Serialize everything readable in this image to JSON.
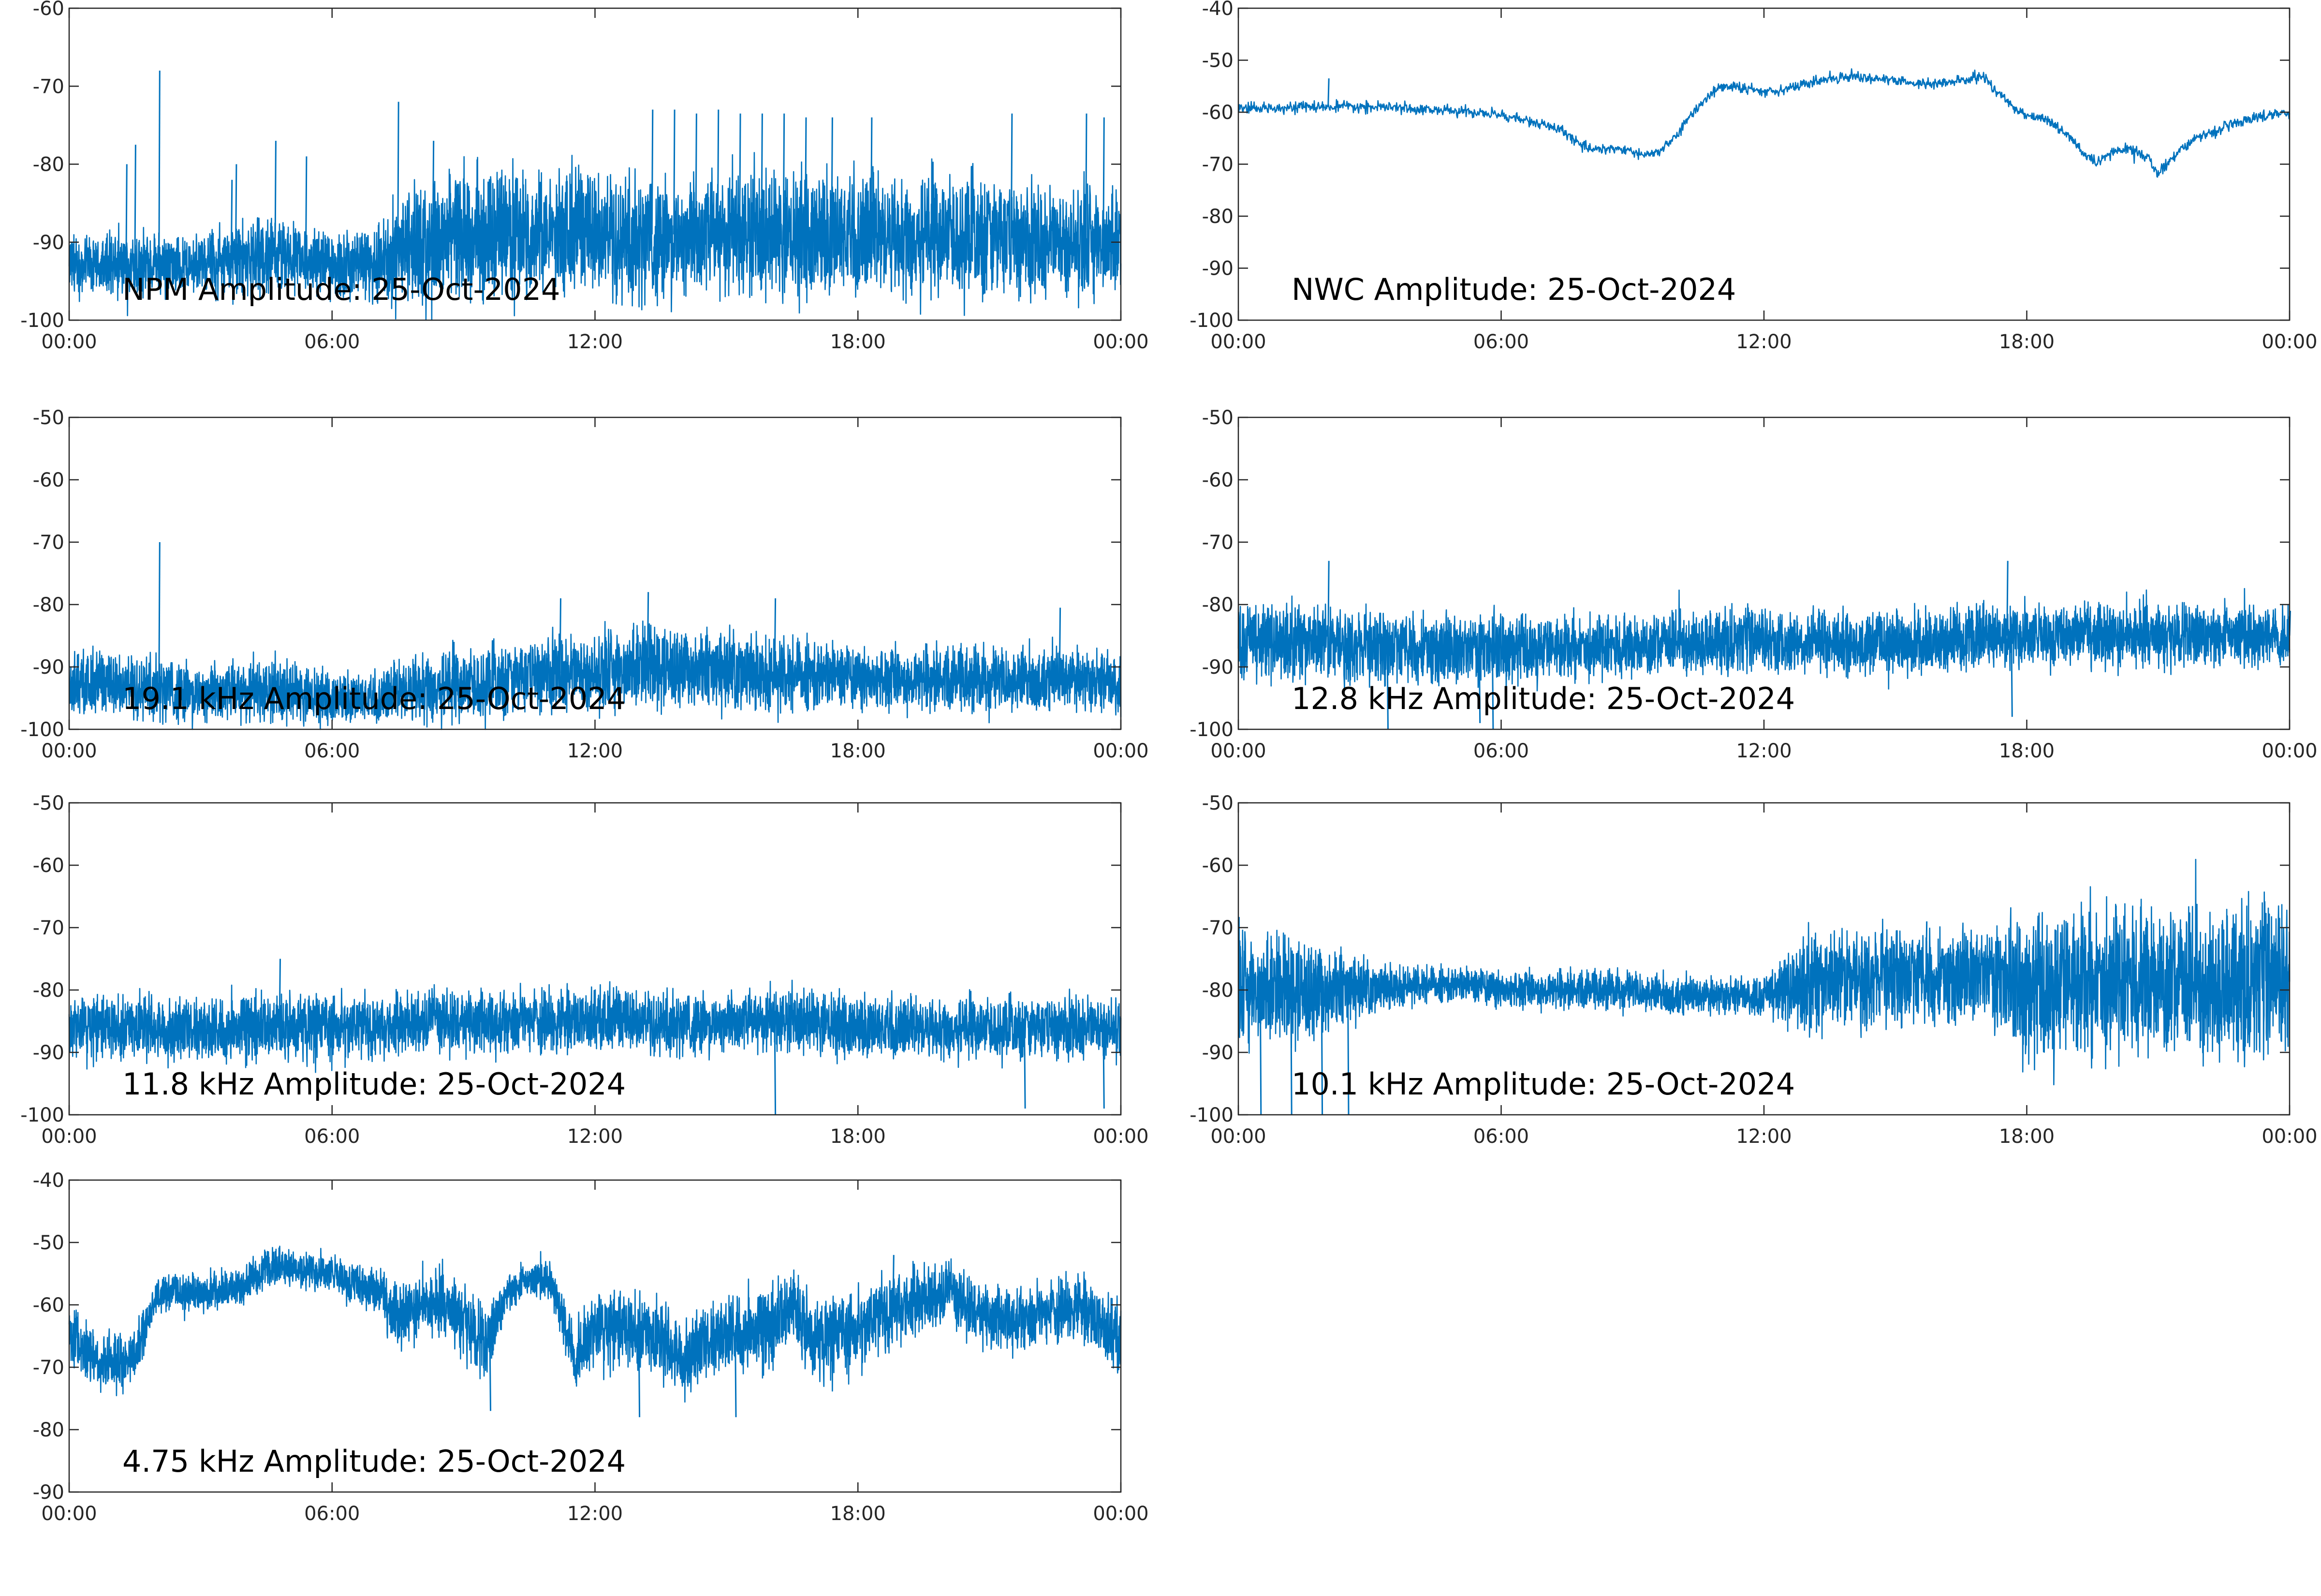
{
  "colors": {
    "series": "#0072BD",
    "axes": "#262626",
    "background": "#ffffff"
  },
  "chart_data": [
    {
      "type": "line",
      "title": "NPM Amplitude: 25-Oct-2024",
      "x_tick_labels": [
        "00:00",
        "06:00",
        "12:00",
        "18:00",
        "00:00"
      ],
      "x_range_hours": [
        0,
        24
      ],
      "ylim": [
        -100,
        -60
      ],
      "y_ticks": [
        -100,
        -90,
        -80,
        -70,
        -60
      ],
      "grid": false,
      "series": [
        {
          "values_description_hours": [
            0,
            1,
            2,
            3,
            4,
            5,
            6,
            7,
            8,
            9,
            10,
            11,
            12,
            13,
            14,
            15,
            16,
            17,
            18,
            19,
            20,
            21,
            22,
            23,
            24
          ],
          "center": [
            -93,
            -93,
            -93,
            -93,
            -92,
            -92,
            -93,
            -93,
            -90,
            -89,
            -89,
            -89,
            -89,
            -89,
            -89,
            -89,
            -89,
            -89,
            -89,
            -89,
            -89,
            -89,
            -90,
            -90,
            -90
          ],
          "spread": [
            4,
            4,
            4,
            4,
            5,
            5,
            4,
            5,
            8,
            8,
            8,
            8,
            8,
            8,
            8,
            8,
            8,
            8,
            8,
            8,
            8,
            8,
            7,
            7,
            7
          ],
          "spikes": [
            [
              1.3,
              -80
            ],
            [
              1.5,
              -77.5
            ],
            [
              2.05,
              -68
            ],
            [
              3.7,
              -82
            ],
            [
              3.8,
              -80
            ],
            [
              4.7,
              -77
            ],
            [
              5.4,
              -79
            ],
            [
              7.5,
              -72
            ],
            [
              8.3,
              -77
            ],
            [
              13.3,
              -73
            ],
            [
              13.8,
              -73
            ],
            [
              14.3,
              -73.5
            ],
            [
              14.8,
              -73
            ],
            [
              15.3,
              -73.5
            ],
            [
              15.8,
              -73.5
            ],
            [
              16.3,
              -73.5
            ],
            [
              16.8,
              -74
            ],
            [
              17.4,
              -74
            ],
            [
              18.3,
              -74
            ],
            [
              21.5,
              -73.5
            ],
            [
              23.2,
              -73.5
            ],
            [
              23.6,
              -74
            ]
          ]
        }
      ]
    },
    {
      "type": "line",
      "title": "NWC Amplitude: 25-Oct-2024",
      "x_tick_labels": [
        "00:00",
        "06:00",
        "12:00",
        "18:00",
        "00:00"
      ],
      "x_range_hours": [
        0,
        24
      ],
      "ylim": [
        -100,
        -40
      ],
      "y_ticks": [
        -100,
        -90,
        -80,
        -70,
        -60,
        -50,
        -40
      ],
      "grid": false,
      "series": [
        {
          "x": [
            0,
            1,
            2,
            3,
            4,
            5,
            6,
            7,
            7.5,
            7.8,
            8.2,
            8.6,
            9,
            9.3,
            9.7,
            10,
            10.3,
            10.6,
            10.9,
            11.2,
            11.6,
            12,
            12.5,
            13,
            13.5,
            14,
            14.5,
            15,
            15.5,
            16,
            16.5,
            17,
            17.3,
            17.7,
            18,
            18.5,
            19,
            19.3,
            19.6,
            19.9,
            20.2,
            20.5,
            20.8,
            21,
            21.2,
            21.5,
            22,
            22.5,
            23,
            23.5,
            24
          ],
          "y": [
            -59.5,
            -59,
            -59,
            -59,
            -59.3,
            -59.8,
            -60.5,
            -62.5,
            -64,
            -66.5,
            -67,
            -67,
            -67.5,
            -68.5,
            -67,
            -64.5,
            -61,
            -58,
            -55.5,
            -55,
            -55.5,
            -56,
            -55.5,
            -54.5,
            -53.5,
            -53,
            -53.5,
            -54,
            -54.5,
            -54.5,
            -54,
            -53,
            -56,
            -59,
            -60.5,
            -61.5,
            -65,
            -68,
            -70,
            -68,
            -67,
            -67.5,
            -69,
            -72,
            -70,
            -67,
            -64.5,
            -63,
            -61.5,
            -60.5,
            -60
          ],
          "noise": 0.5,
          "spikes": [
            [
              2.05,
              -53.5
            ]
          ]
        }
      ]
    },
    {
      "type": "line",
      "title": "19.1 kHz Amplitude: 25-Oct-2024",
      "x_tick_labels": [
        "00:00",
        "06:00",
        "12:00",
        "18:00",
        "00:00"
      ],
      "x_range_hours": [
        0,
        24
      ],
      "ylim": [
        -100,
        -50
      ],
      "y_ticks": [
        -100,
        -90,
        -80,
        -70,
        -60,
        -50
      ],
      "grid": false,
      "series": [
        {
          "values_description_hours": [
            0,
            1,
            2,
            3,
            4,
            5,
            6,
            7,
            8,
            9,
            10,
            11,
            12,
            13,
            14,
            15,
            16,
            17,
            18,
            19,
            20,
            21,
            22,
            23,
            24
          ],
          "center": [
            -93,
            -93,
            -93,
            -94,
            -94,
            -94,
            -95,
            -95,
            -93,
            -93,
            -92,
            -91,
            -91,
            -90,
            -90,
            -91,
            -91,
            -91,
            -92,
            -92,
            -92,
            -92,
            -92,
            -92,
            -93
          ],
          "spread": [
            5,
            5,
            5,
            5,
            5,
            5,
            4,
            4,
            6,
            6,
            6,
            6,
            6,
            7,
            6,
            6,
            6,
            6,
            5,
            5,
            5,
            5,
            5,
            5,
            5
          ],
          "spikes": [
            [
              2.05,
              -70
            ],
            [
              11.2,
              -79
            ],
            [
              13.2,
              -78
            ],
            [
              16.1,
              -79
            ],
            [
              22.6,
              -80.5
            ]
          ]
        }
      ]
    },
    {
      "type": "line",
      "title": "12.8 kHz Amplitude: 25-Oct-2024",
      "x_tick_labels": [
        "00:00",
        "06:00",
        "12:00",
        "18:00",
        "00:00"
      ],
      "x_range_hours": [
        0,
        24
      ],
      "ylim": [
        -100,
        -50
      ],
      "y_ticks": [
        -100,
        -90,
        -80,
        -70,
        -60,
        -50
      ],
      "grid": false,
      "series": [
        {
          "values_description_hours": [
            0,
            1,
            2,
            3,
            4,
            5,
            6,
            7,
            8,
            9,
            10,
            11,
            12,
            13,
            14,
            15,
            16,
            17,
            18,
            19,
            20,
            21,
            22,
            23,
            24
          ],
          "center": [
            -86,
            -86,
            -86,
            -87,
            -87,
            -87,
            -87,
            -87,
            -87,
            -87,
            -86,
            -86,
            -86,
            -86,
            -86,
            -86,
            -86,
            -85,
            -85,
            -85,
            -85,
            -85,
            -85,
            -85,
            -85
          ],
          "spread": [
            6,
            6,
            6,
            6,
            6,
            6,
            6,
            5,
            5,
            5,
            5,
            5,
            5,
            5,
            5,
            5,
            5,
            5,
            5,
            5,
            5,
            5,
            5,
            5,
            5
          ],
          "spikes": [
            [
              2.05,
              -73
            ],
            [
              3.4,
              -100
            ],
            [
              5.5,
              -99
            ],
            [
              5.8,
              -100
            ],
            [
              17.55,
              -73
            ],
            [
              17.65,
              -98
            ],
            [
              24,
              -81
            ]
          ]
        }
      ]
    },
    {
      "type": "line",
      "title": "11.8 kHz Amplitude: 25-Oct-2024",
      "x_tick_labels": [
        "00:00",
        "06:00",
        "12:00",
        "18:00",
        "00:00"
      ],
      "x_range_hours": [
        0,
        24
      ],
      "ylim": [
        -100,
        -50
      ],
      "y_ticks": [
        -100,
        -90,
        -80,
        -70,
        -60,
        -50
      ],
      "grid": false,
      "series": [
        {
          "values_description_hours": [
            0,
            1,
            2,
            3,
            4,
            5,
            6,
            7,
            8,
            9,
            10,
            11,
            12,
            13,
            14,
            15,
            16,
            17,
            18,
            19,
            20,
            21,
            22,
            23,
            24
          ],
          "center": [
            -86,
            -86,
            -86,
            -86,
            -86,
            -86,
            -86,
            -86,
            -85,
            -85,
            -85,
            -85,
            -85,
            -85,
            -85,
            -85,
            -85,
            -85,
            -86,
            -86,
            -86,
            -86,
            -86,
            -86,
            -86
          ],
          "spread": [
            5,
            5,
            5,
            5,
            5,
            5,
            5,
            5,
            5,
            5,
            5,
            5,
            5,
            5,
            5,
            5,
            5,
            5,
            5,
            5,
            5,
            5,
            5,
            5,
            5
          ],
          "spikes": [
            [
              4.8,
              -75
            ],
            [
              16.1,
              -100
            ],
            [
              21.8,
              -99
            ],
            [
              23.6,
              -99
            ]
          ]
        }
      ]
    },
    {
      "type": "line",
      "title": "10.1 kHz Amplitude: 25-Oct-2024",
      "x_tick_labels": [
        "00:00",
        "06:00",
        "12:00",
        "18:00",
        "00:00"
      ],
      "x_range_hours": [
        0,
        24
      ],
      "ylim": [
        -100,
        -50
      ],
      "y_ticks": [
        -100,
        -90,
        -80,
        -70,
        -60,
        -50
      ],
      "grid": false,
      "series": [
        {
          "values_description_hours": [
            0,
            1,
            2,
            3,
            4,
            5,
            6,
            7,
            8,
            9,
            10,
            11,
            12,
            13,
            14,
            15,
            16,
            17,
            18,
            19,
            20,
            21,
            22,
            23,
            24
          ],
          "center": [
            -80,
            -80,
            -80,
            -80,
            -79,
            -79,
            -80,
            -80,
            -80,
            -80,
            -81,
            -81,
            -81,
            -79,
            -78,
            -78,
            -78,
            -77,
            -80,
            -79,
            -79,
            -79,
            -79,
            -79,
            -79
          ],
          "spread": [
            9,
            9,
            7,
            4,
            3,
            3,
            3,
            3,
            3,
            3,
            3,
            3,
            3,
            8,
            8,
            8,
            8,
            8,
            12,
            12,
            12,
            12,
            12,
            12,
            12
          ],
          "spikes": [
            [
              0.5,
              -100
            ],
            [
              1.2,
              -100
            ],
            [
              1.9,
              -100
            ],
            [
              2.5,
              -100
            ],
            [
              15.7,
              -69
            ]
          ]
        }
      ]
    },
    {
      "type": "line",
      "title": "4.75 kHz Amplitude: 25-Oct-2024",
      "x_tick_labels": [
        "00:00",
        "06:00",
        "12:00",
        "18:00",
        "00:00"
      ],
      "x_range_hours": [
        0,
        24
      ],
      "ylim": [
        -90,
        -40
      ],
      "y_ticks": [
        -90,
        -80,
        -70,
        -60,
        -50,
        -40
      ],
      "grid": false,
      "series": [
        {
          "values_description_hours": [
            0,
            0.5,
            1,
            1.5,
            2,
            3,
            4,
            4.5,
            5,
            6,
            7,
            7.5,
            8,
            8.5,
            9,
            9.5,
            10,
            10.5,
            11,
            11.5,
            12,
            13,
            14,
            14.5,
            15,
            16,
            16.5,
            17,
            18,
            19,
            20,
            21,
            22,
            23,
            24
          ],
          "center": [
            -64,
            -68,
            -70,
            -68,
            -58,
            -58,
            -57,
            -54,
            -54,
            -55,
            -58,
            -62,
            -60,
            -60,
            -62,
            -67,
            -58,
            -56,
            -56,
            -68,
            -64,
            -64,
            -68,
            -66,
            -64,
            -64,
            -60,
            -66,
            -64,
            -60,
            -58,
            -62,
            -62,
            -60,
            -66
          ],
          "spread": [
            5,
            5,
            5,
            4,
            3,
            3,
            3,
            3,
            3,
            3,
            4,
            5,
            5,
            5,
            6,
            6,
            3,
            3,
            3,
            6,
            6,
            6,
            6,
            6,
            6,
            6,
            6,
            6,
            6,
            6,
            5,
            5,
            5,
            5,
            6
          ],
          "spikes": [
            [
              9.6,
              -77
            ],
            [
              13,
              -78
            ],
            [
              15.2,
              -78
            ],
            [
              18.8,
              -52
            ]
          ]
        }
      ]
    }
  ]
}
